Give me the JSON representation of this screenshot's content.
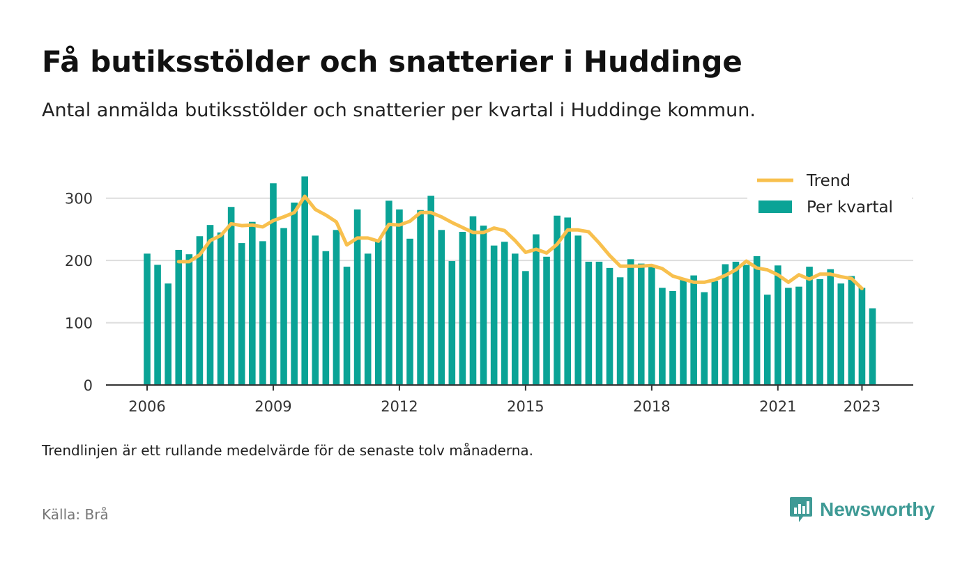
{
  "title": "Få butiksstölder och snatterier i Huddinge",
  "subtitle": "Antal anmälda butiksstölder och snatterier per kvartal i Huddinge kommun.",
  "footnote": "Trendlinjen är ett rullande medelvärde för de senaste tolv månaderna.",
  "source": "Källa: Brå",
  "brand": "Newsworthy",
  "colors": {
    "bar": "#0aa396",
    "trend": "#f8c04e",
    "grid": "#dddddd",
    "axis": "#333333",
    "brand": "#3e9a95"
  },
  "chart_data": {
    "type": "bar",
    "x_start": "2006 Q1",
    "ylim": [
      0,
      350
    ],
    "yticks": [
      0,
      100,
      200,
      300
    ],
    "xticks": [
      "2006",
      "2009",
      "2012",
      "2015",
      "2018",
      "2021",
      "2023"
    ],
    "grid": true,
    "legend_position": "top-right",
    "series": [
      {
        "name": "Per kvartal",
        "type": "bar",
        "values": [
          211,
          193,
          163,
          217,
          210,
          239,
          257,
          245,
          286,
          228,
          262,
          231,
          324,
          252,
          293,
          335,
          240,
          215,
          249,
          190,
          282,
          211,
          233,
          296,
          282,
          235,
          281,
          304,
          249,
          199,
          246,
          271,
          256,
          224,
          230,
          211,
          183,
          242,
          206,
          272,
          269,
          240,
          198,
          198,
          188,
          173,
          202,
          195,
          193,
          156,
          151,
          171,
          176,
          149,
          167,
          194,
          198,
          193,
          207,
          145,
          192,
          156,
          158,
          190,
          170,
          186,
          163,
          175,
          156,
          123
        ]
      },
      {
        "name": "Trend",
        "type": "line",
        "start_index": 3,
        "values": [
          198,
          198,
          209,
          232,
          240,
          259,
          256,
          257,
          254,
          264,
          270,
          277,
          303,
          282,
          273,
          262,
          225,
          236,
          236,
          231,
          258,
          257,
          263,
          277,
          277,
          270,
          261,
          253,
          245,
          245,
          252,
          248,
          232,
          213,
          218,
          212,
          226,
          249,
          249,
          246,
          228,
          208,
          191,
          191,
          191,
          192,
          187,
          175,
          170,
          165,
          165,
          169,
          176,
          185,
          199,
          188,
          185,
          177,
          165,
          177,
          170,
          178,
          178,
          174,
          171,
          155
        ]
      }
    ]
  }
}
